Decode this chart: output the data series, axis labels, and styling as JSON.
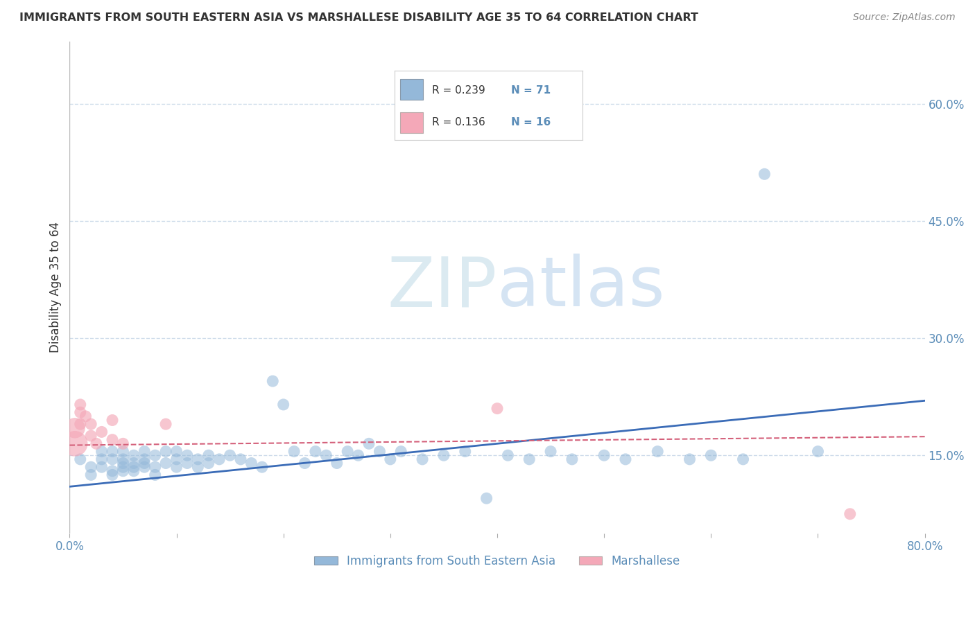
{
  "title": "IMMIGRANTS FROM SOUTH EASTERN ASIA VS MARSHALLESE DISABILITY AGE 35 TO 64 CORRELATION CHART",
  "source": "Source: ZipAtlas.com",
  "ylabel": "Disability Age 35 to 64",
  "legend_label_1": "Immigrants from South Eastern Asia",
  "legend_label_2": "Marshallese",
  "R1": 0.239,
  "N1": 71,
  "R2": 0.136,
  "N2": 16,
  "xlim": [
    0.0,
    0.8
  ],
  "ylim": [
    0.05,
    0.68
  ],
  "yticks": [
    0.15,
    0.3,
    0.45,
    0.6
  ],
  "ytick_labels": [
    "15.0%",
    "30.0%",
    "45.0%",
    "60.0%"
  ],
  "xticks": [
    0.0,
    0.1,
    0.2,
    0.3,
    0.4,
    0.5,
    0.6,
    0.7,
    0.8
  ],
  "xtick_labels": [
    "0.0%",
    "",
    "",
    "",
    "",
    "",
    "",
    "",
    "80.0%"
  ],
  "color_blue": "#94B8D9",
  "color_pink": "#F4A8B8",
  "trend_blue": "#3B6CB7",
  "trend_pink": "#D4607A",
  "background": "#FFFFFF",
  "title_color": "#333333",
  "tick_color": "#5B8DB8",
  "grid_color": "#C8D8E8",
  "blue_scatter_x": [
    0.01,
    0.02,
    0.02,
    0.03,
    0.03,
    0.03,
    0.04,
    0.04,
    0.04,
    0.04,
    0.05,
    0.05,
    0.05,
    0.05,
    0.05,
    0.06,
    0.06,
    0.06,
    0.06,
    0.07,
    0.07,
    0.07,
    0.07,
    0.08,
    0.08,
    0.08,
    0.09,
    0.09,
    0.1,
    0.1,
    0.1,
    0.11,
    0.11,
    0.12,
    0.12,
    0.13,
    0.13,
    0.14,
    0.15,
    0.16,
    0.17,
    0.18,
    0.19,
    0.2,
    0.21,
    0.22,
    0.23,
    0.24,
    0.25,
    0.26,
    0.27,
    0.28,
    0.29,
    0.3,
    0.31,
    0.33,
    0.35,
    0.37,
    0.39,
    0.41,
    0.43,
    0.45,
    0.47,
    0.5,
    0.52,
    0.55,
    0.58,
    0.6,
    0.63,
    0.65,
    0.7
  ],
  "blue_scatter_y": [
    0.145,
    0.135,
    0.125,
    0.155,
    0.135,
    0.145,
    0.13,
    0.145,
    0.155,
    0.125,
    0.135,
    0.145,
    0.155,
    0.13,
    0.14,
    0.135,
    0.15,
    0.14,
    0.13,
    0.145,
    0.135,
    0.155,
    0.14,
    0.135,
    0.15,
    0.125,
    0.14,
    0.155,
    0.145,
    0.135,
    0.155,
    0.14,
    0.15,
    0.145,
    0.135,
    0.15,
    0.14,
    0.145,
    0.15,
    0.145,
    0.14,
    0.135,
    0.245,
    0.215,
    0.155,
    0.14,
    0.155,
    0.15,
    0.14,
    0.155,
    0.15,
    0.165,
    0.155,
    0.145,
    0.155,
    0.145,
    0.15,
    0.155,
    0.095,
    0.15,
    0.145,
    0.155,
    0.145,
    0.15,
    0.145,
    0.155,
    0.145,
    0.15,
    0.145,
    0.51,
    0.155
  ],
  "pink_scatter_x": [
    0.005,
    0.005,
    0.01,
    0.01,
    0.01,
    0.015,
    0.02,
    0.02,
    0.025,
    0.03,
    0.04,
    0.04,
    0.05,
    0.09,
    0.4,
    0.73
  ],
  "pink_scatter_y": [
    0.165,
    0.185,
    0.215,
    0.205,
    0.19,
    0.2,
    0.175,
    0.19,
    0.165,
    0.18,
    0.195,
    0.17,
    0.165,
    0.19,
    0.21,
    0.075
  ],
  "pink_scatter_sizes": [
    700,
    450,
    150,
    150,
    150,
    150,
    150,
    150,
    150,
    150,
    150,
    150,
    150,
    150,
    150,
    150
  ],
  "trend1_x": [
    0.0,
    0.8
  ],
  "trend1_y": [
    0.11,
    0.22
  ],
  "trend2_x": [
    0.0,
    0.8
  ],
  "trend2_y": [
    0.163,
    0.174
  ]
}
